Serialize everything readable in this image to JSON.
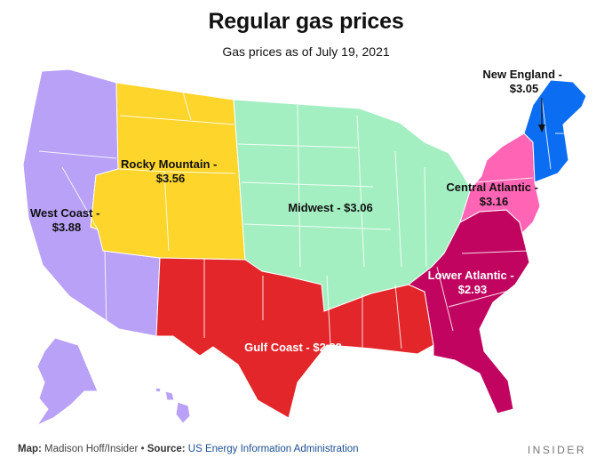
{
  "header": {
    "title": "Regular gas prices",
    "subtitle": "Gas prices as of July 19, 2021"
  },
  "regions": [
    {
      "key": "west_coast",
      "name": "West Coast -",
      "price": "$3.88",
      "color": "#b8a1f7",
      "text_color": "#111111"
    },
    {
      "key": "rocky_mountain",
      "name": "Rocky Mountain -",
      "price": "$3.56",
      "color": "#fdd52b",
      "text_color": "#111111"
    },
    {
      "key": "midwest",
      "name": "Midwest - $3.06",
      "price": "",
      "color": "#a4efc2",
      "text_color": "#111111"
    },
    {
      "key": "gulf_coast",
      "name": "Gulf Coast - $2.83",
      "price": "",
      "color": "#e3262a",
      "text_color": "#ffffff"
    },
    {
      "key": "lower_atlantic",
      "name": "Lower Atlantic -",
      "price": "$2.93",
      "color": "#c0045f",
      "text_color": "#ffffff"
    },
    {
      "key": "central_atlantic",
      "name": "Central Atlantic -",
      "price": "$3.16",
      "color": "#ff64b5",
      "text_color": "#111111"
    },
    {
      "key": "new_england",
      "name": "New England -",
      "price": "$3.05",
      "color": "#0a6df2",
      "text_color": "#111111"
    }
  ],
  "footer": {
    "map_label": "Map:",
    "map_credit": "Madison Hoff/Insider",
    "separator": "•",
    "source_label": "Source:",
    "source_text": "US Energy Information Administration",
    "brand": "INSIDER"
  }
}
